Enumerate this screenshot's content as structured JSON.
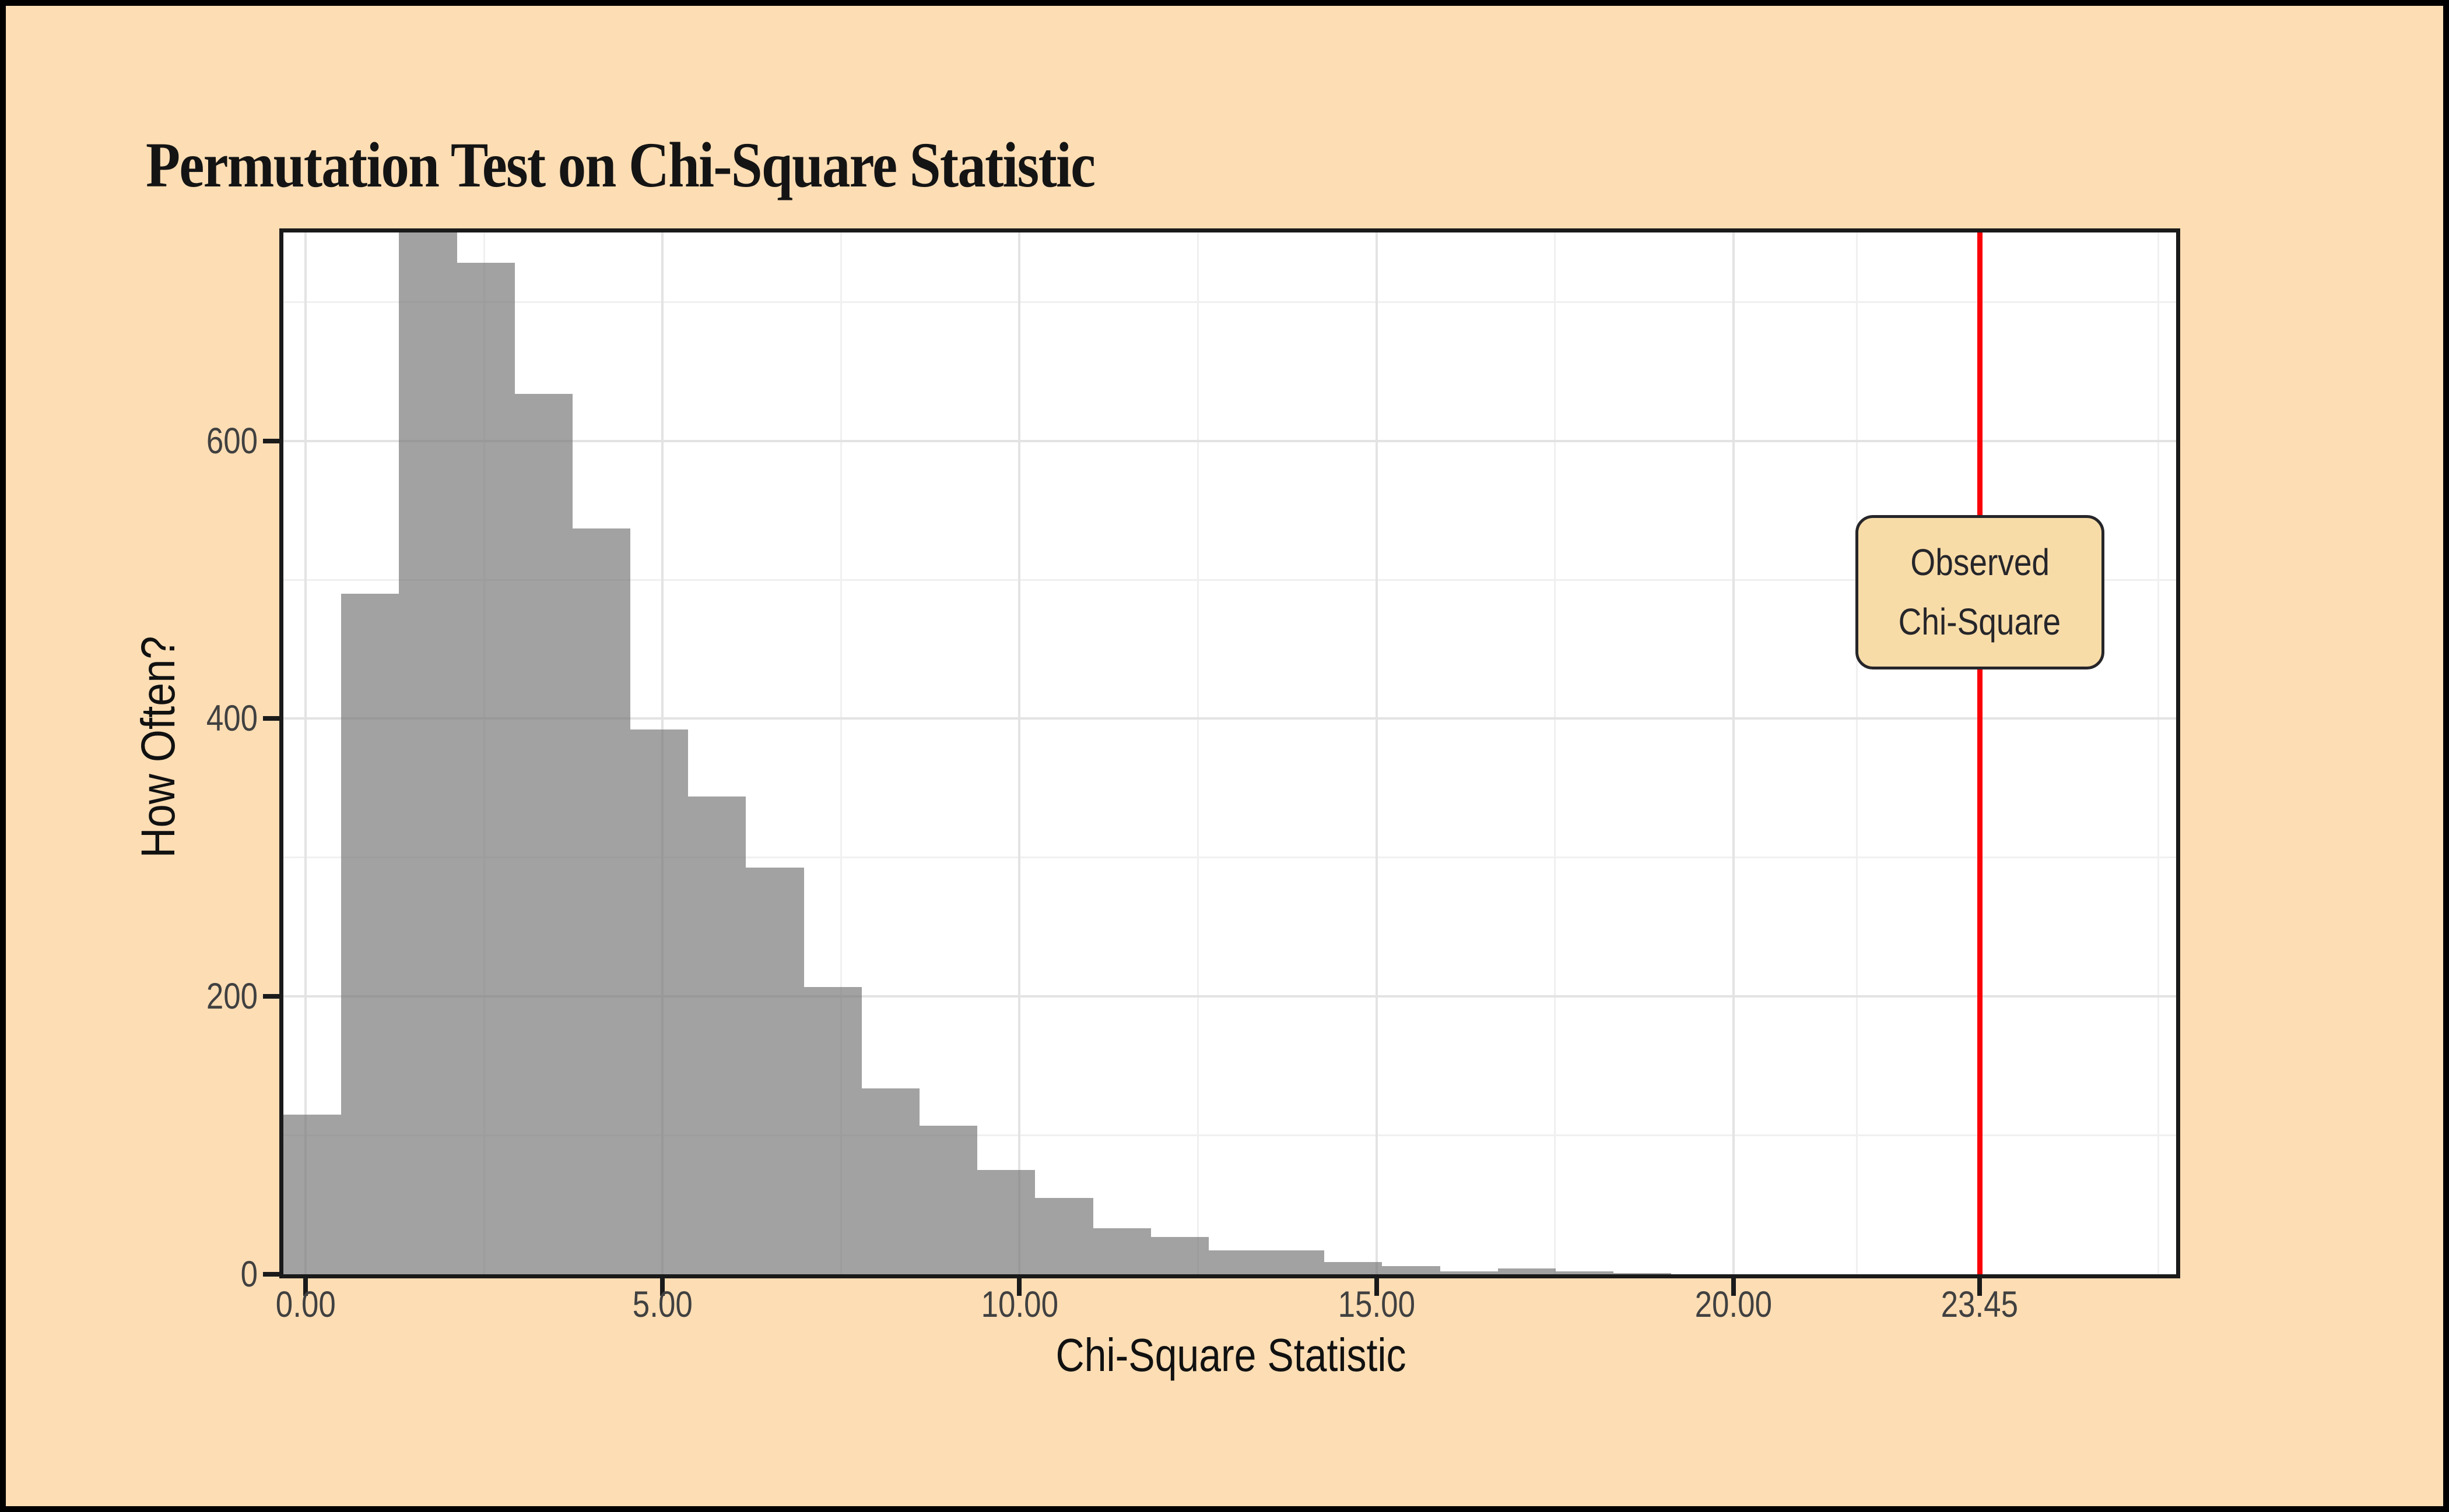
{
  "title": "Permutation Test on Chi-Square Statistic",
  "axis_titles": {
    "x": "Chi-Square Statistic",
    "y": "How Often?"
  },
  "annotation": {
    "line1": "Observed",
    "line2": "Chi-Square"
  },
  "colors": {
    "page_background": "#FDDDB4",
    "outer_border": "#000000",
    "panel_background": "#FFFFFF",
    "panel_border": "#1A1A1A",
    "grid_major": "#E3E3E3",
    "grid_minor": "#F0F0F0",
    "bar_fill": "#767676",
    "bar_opacity": 0.68,
    "observed_line": "#FA0007",
    "annotation_fill": "#F8DCA8",
    "annotation_border": "#26262A",
    "annotation_text": "#26262A",
    "tick_text": "#404040",
    "axis_title_text": "#111111",
    "title_text": "#141414"
  },
  "chart_data": {
    "type": "bar",
    "subtype": "histogram",
    "title": "Permutation Test on Chi-Square Statistic",
    "xlabel": "Chi-Square Statistic",
    "ylabel": "How Often?",
    "xlim": [
      -0.31,
      26.2
    ],
    "ylim": [
      0,
      750
    ],
    "grid": "on",
    "legend": "none",
    "bin_start": -0.31,
    "bin_width": 0.81,
    "counts": [
      115,
      490,
      760,
      728,
      634,
      537,
      392,
      344,
      293,
      207,
      134,
      107,
      75,
      55,
      33,
      27,
      17,
      17,
      9,
      6,
      2,
      4,
      2,
      1
    ],
    "peak_clipped_at_panel_top": true,
    "x_major_ticks": [
      {
        "value": 0,
        "label": "0.00"
      },
      {
        "value": 5,
        "label": "5.00"
      },
      {
        "value": 10,
        "label": "10.00"
      },
      {
        "value": 15,
        "label": "15.00"
      },
      {
        "value": 20,
        "label": "20.00"
      },
      {
        "value": 23.45,
        "label": "23.45"
      }
    ],
    "x_minor_gridlines": [
      2.5,
      7.5,
      12.5,
      17.5,
      21.725,
      25.95
    ],
    "y_major_ticks": [
      {
        "value": 0,
        "label": "0"
      },
      {
        "value": 200,
        "label": "200"
      },
      {
        "value": 400,
        "label": "400"
      },
      {
        "value": 600,
        "label": "600"
      }
    ],
    "y_minor_gridlines": [
      100,
      300,
      500,
      700
    ],
    "observed_value": 23.45,
    "observed_label": [
      "Observed",
      "Chi-Square"
    ]
  }
}
